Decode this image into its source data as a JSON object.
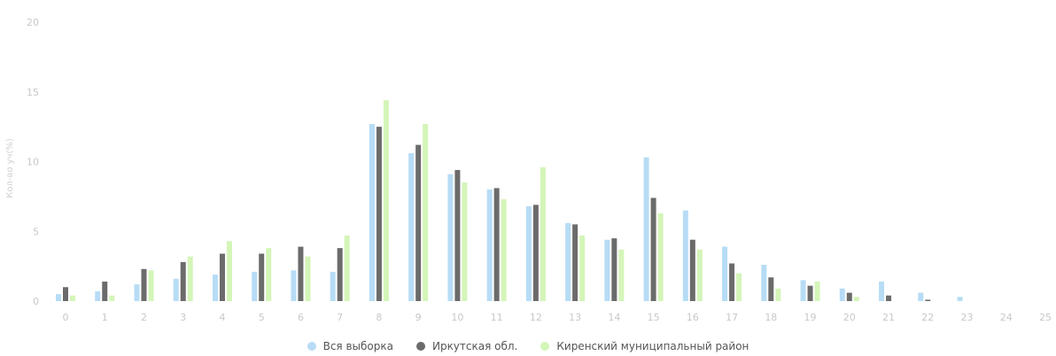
{
  "chart_data": {
    "type": "bar",
    "ylabel": "Кол-во уч(%)",
    "ylim": [
      0,
      20
    ],
    "yticks": [
      "0",
      "5",
      "10",
      "15",
      "20"
    ],
    "categories": [
      "0",
      "1",
      "2",
      "3",
      "4",
      "5",
      "6",
      "7",
      "8",
      "9",
      "10",
      "11",
      "12",
      "13",
      "14",
      "15",
      "16",
      "17",
      "18",
      "19",
      "20",
      "21",
      "22",
      "23",
      "24",
      "25"
    ],
    "grid": false,
    "legend_position": "bottom-center",
    "series": [
      {
        "name": "Вся выборка",
        "color": "#b7dcf5",
        "values": [
          0.5,
          0.7,
          1.2,
          1.6,
          1.9,
          2.1,
          2.2,
          2.1,
          12.7,
          10.6,
          9.1,
          8.0,
          6.8,
          5.6,
          4.4,
          10.3,
          6.5,
          3.9,
          2.6,
          1.5,
          0.9,
          1.4,
          0.6,
          0.3,
          0,
          0
        ]
      },
      {
        "name": "Иркутская обл.",
        "color": "#6b6b6b",
        "values": [
          1.0,
          1.4,
          2.3,
          2.8,
          3.4,
          3.4,
          3.9,
          3.8,
          12.5,
          11.2,
          9.4,
          8.1,
          6.9,
          5.5,
          4.5,
          7.4,
          4.4,
          2.7,
          1.7,
          1.1,
          0.6,
          0.4,
          0.1,
          0,
          0,
          0
        ]
      },
      {
        "name": "Киренский муниципальный район",
        "color": "#d4f5b8",
        "values": [
          0.4,
          0.4,
          2.2,
          3.2,
          4.3,
          3.8,
          3.2,
          4.7,
          14.4,
          12.7,
          8.5,
          7.3,
          9.6,
          4.7,
          3.7,
          6.3,
          3.7,
          2.0,
          0.9,
          1.4,
          0.3,
          0,
          0,
          0,
          0,
          0
        ]
      }
    ]
  }
}
